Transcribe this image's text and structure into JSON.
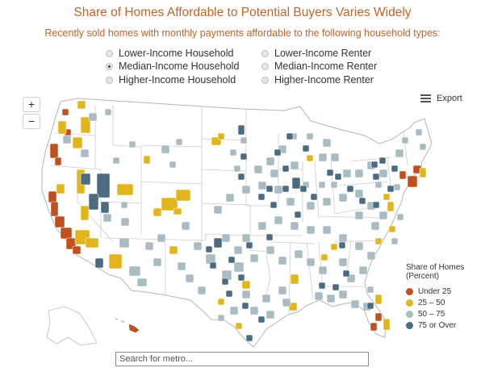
{
  "title": "Share of Homes Affordable to Potential Buyers Varies Widely",
  "subtitle": "Recently sold homes with monthly payments affordable to the following household types:",
  "options": [
    {
      "label": "Lower-Income Household",
      "selected": false
    },
    {
      "label": "Lower-Income Renter",
      "selected": false
    },
    {
      "label": "Median-Income Household",
      "selected": true
    },
    {
      "label": "Median-Income Renter",
      "selected": false
    },
    {
      "label": "Higher-Income Household",
      "selected": false
    },
    {
      "label": "Higher-Income Renter",
      "selected": false
    }
  ],
  "zoom": {
    "in_label": "+",
    "out_label": "−"
  },
  "export_label": "Export",
  "legend": {
    "title_line1": "Share of Homes",
    "title_line2": "(Percent)",
    "items": [
      {
        "label": "Under 25",
        "color": "#c0501e"
      },
      {
        "label": "25 – 50",
        "color": "#e3b51c"
      },
      {
        "label": "50 – 75",
        "color": "#a9bcc3"
      },
      {
        "label": "75 or Over",
        "color": "#4a6b80"
      }
    ]
  },
  "search": {
    "placeholder": "Search for metro..."
  },
  "colors": {
    "under_25": "#c0501e",
    "25_50": "#e3b51c",
    "50_75": "#a9bcc3",
    "75_over": "#4a6b80",
    "land": "#ffffff",
    "state_borders": "#c8c8c8"
  }
}
